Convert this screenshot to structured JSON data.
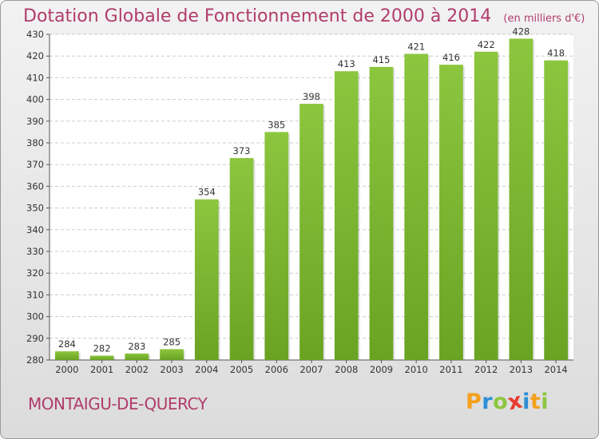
{
  "chart_data": {
    "type": "bar",
    "title": "Dotation Globale de Fonctionnement de 2000 à 2014",
    "subtitle": "(en milliers d'€)",
    "categories": [
      "2000",
      "2001",
      "2002",
      "2003",
      "2004",
      "2005",
      "2006",
      "2007",
      "2008",
      "2009",
      "2010",
      "2011",
      "2012",
      "2013",
      "2014"
    ],
    "values": [
      284,
      282,
      283,
      285,
      354,
      373,
      385,
      398,
      413,
      415,
      421,
      416,
      422,
      428,
      418
    ],
    "yticks": [
      280,
      290,
      300,
      310,
      320,
      330,
      340,
      350,
      360,
      370,
      380,
      390,
      400,
      410,
      420,
      430
    ],
    "ylim": [
      280,
      430
    ],
    "grid": true,
    "bar_color": "#8cc63f",
    "bar_color_dark": "#6aa322",
    "title_color": "#b03d6b"
  },
  "footer": {
    "commune": "MONTAIGU-DE-QUERCY",
    "logo_letters": [
      "P",
      "r",
      "o",
      "x",
      "i",
      "t",
      "i"
    ],
    "logo_colors": [
      "#f4a11d",
      "#2d8fd5",
      "#8cc63f",
      "#e63c2f",
      "#2d8fd5",
      "#f4a11d",
      "#8cc63f"
    ]
  }
}
